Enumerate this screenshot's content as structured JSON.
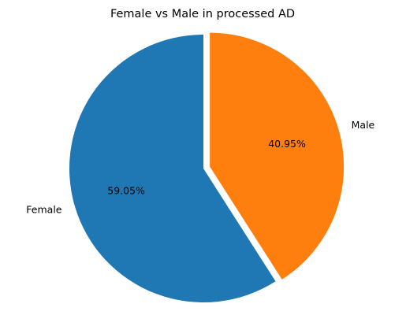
{
  "chart_data": {
    "type": "pie",
    "title": "Female vs Male in processed AD",
    "labels": [
      "Female",
      "Male"
    ],
    "values": [
      59.05,
      40.95
    ],
    "percent_labels": [
      "59.05%",
      "40.95%"
    ],
    "colors": [
      "#1f77b4",
      "#ff7f0e"
    ],
    "explode": [
      0,
      0.05
    ],
    "start_angle_deg": 90,
    "direction": "counterclockwise",
    "legend": "none"
  }
}
